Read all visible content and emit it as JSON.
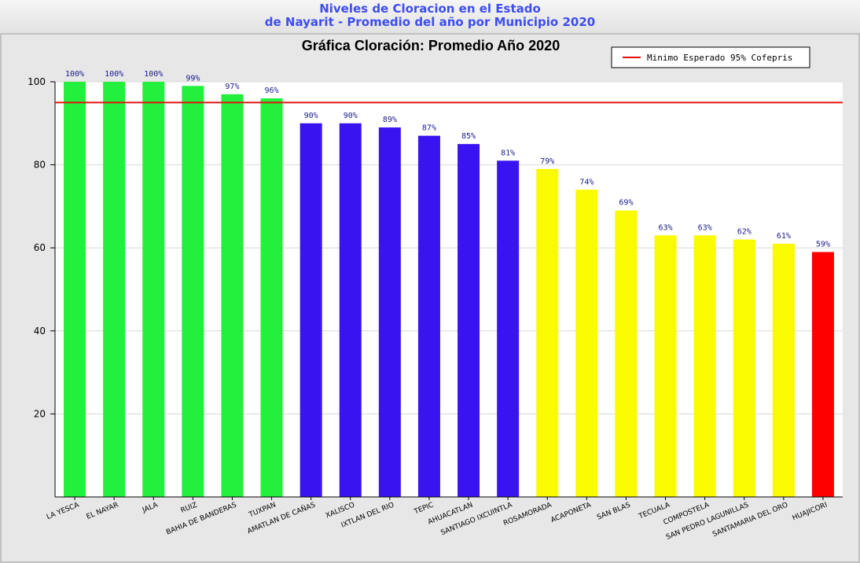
{
  "header": {
    "line1": "Niveles de Cloracion en el Estado",
    "line2": "de Nayarit - Promedio del año por Municipio 2020"
  },
  "chart_data": {
    "type": "bar",
    "title": "Gráfica Cloración: Promedio Año 2020",
    "xlabel": "",
    "ylabel": "",
    "ylim": [
      0,
      100
    ],
    "yticks": [
      20,
      40,
      60,
      80,
      100
    ],
    "grid": true,
    "legend_position": "top-right",
    "categories": [
      "LA YESCA",
      "EL NAYAR",
      "JALA",
      "RUIZ",
      "BAHIA DE BANDERAS",
      "TUXPAN",
      "AMATLAN DE CAÑAS",
      "XALISCO",
      "IXTLAN DEL RIO",
      "TEPIC",
      "AHUACATLAN",
      "SANTIAGO IXCUINTLA",
      "ROSAMORADA",
      "ACAPONETA",
      "SAN BLAS",
      "TECUALA",
      "COMPOSTELA",
      "SAN PEDRO LAGUNILLAS",
      "SANTAMARIA DEL ORO",
      "HUAJICORI"
    ],
    "values": [
      100,
      100,
      100,
      99,
      97,
      96,
      90,
      90,
      89,
      87,
      85,
      81,
      79,
      74,
      69,
      63,
      63,
      62,
      61,
      59
    ],
    "value_labels": [
      "100%",
      "100%",
      "100%",
      "99%",
      "97%",
      "96%",
      "90%",
      "90%",
      "89%",
      "87%",
      "85%",
      "81%",
      "79%",
      "74%",
      "69%",
      "63%",
      "63%",
      "62%",
      "61%",
      "59%"
    ],
    "bar_colors": [
      "#22f03c",
      "#22f03c",
      "#22f03c",
      "#22f03c",
      "#22f03c",
      "#22f03c",
      "#3a14f0",
      "#3a14f0",
      "#3a14f0",
      "#3a14f0",
      "#3a14f0",
      "#3a14f0",
      "#fafa00",
      "#fafa00",
      "#fafa00",
      "#fafa00",
      "#fafa00",
      "#fafa00",
      "#fafa00",
      "#ff0000"
    ],
    "reference_line": {
      "value": 95,
      "label": "Minimo Esperado 95% Cofepris",
      "color": "#e01010"
    }
  }
}
